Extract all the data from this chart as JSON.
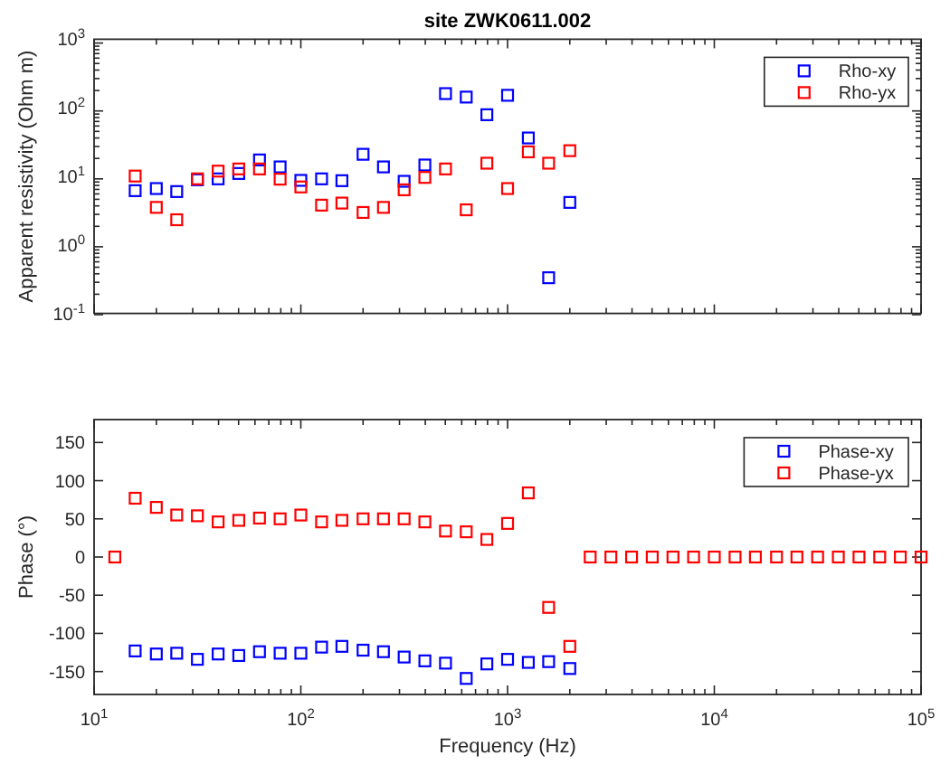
{
  "chart_data": [
    {
      "type": "scatter",
      "title": "site ZWK0611.002",
      "ylabel": "Apparent resistivity (Ohm m)",
      "log": "xy",
      "xlim": [
        10,
        100000
      ],
      "ylim": [
        0.1,
        1000
      ],
      "xticks": [
        {
          "value": 10,
          "label": null
        },
        {
          "value": 100,
          "label": null
        },
        {
          "value": 1000,
          "label": null
        },
        {
          "value": 10000,
          "label": null
        },
        {
          "value": 100000,
          "label": null
        }
      ],
      "yticks": [
        {
          "value": 0.1,
          "label": "10$^{-1}$"
        },
        {
          "value": 1,
          "label": "10$^{0}$"
        },
        {
          "value": 10,
          "label": "10$^{1}$"
        },
        {
          "value": 100,
          "label": "10$^{2}$"
        },
        {
          "value": 1000,
          "label": "10$^{3}$"
        }
      ],
      "tick_labels": "y",
      "marker": "square",
      "legend": "top right",
      "series": [
        {
          "name": "Rho-xy",
          "color": "#0000ff",
          "x": [
            15.8,
            20,
            25.1,
            31.6,
            39.8,
            50.1,
            63.1,
            79.4,
            100,
            126,
            158,
            200,
            251,
            316,
            398,
            501,
            631,
            794,
            1000,
            1260,
            1580,
            2000
          ],
          "values": [
            6.7,
            7.2,
            6.5,
            9.7,
            10,
            12,
            19,
            15,
            9.5,
            10,
            9.4,
            23,
            15,
            9.2,
            16,
            180,
            160,
            88,
            170,
            40,
            0.35,
            4.5
          ]
        },
        {
          "name": "Rho-yx",
          "color": "#ff0000",
          "x": [
            15.8,
            20,
            25.1,
            31.6,
            39.8,
            50.1,
            63.1,
            79.4,
            100,
            126,
            158,
            200,
            251,
            316,
            398,
            501,
            631,
            794,
            1000,
            1260,
            1580,
            2000
          ],
          "values": [
            11,
            3.8,
            2.5,
            10,
            13,
            14,
            14,
            9.9,
            7.6,
            4.1,
            4.4,
            3.2,
            3.8,
            6.9,
            10.5,
            14,
            3.5,
            17,
            7.2,
            25,
            17,
            26
          ]
        }
      ]
    },
    {
      "type": "scatter",
      "xlabel": "Frequency (Hz)",
      "ylabel": "Phase (°)",
      "log": "x",
      "xlim": [
        10,
        100000
      ],
      "ylim": [
        -180,
        180
      ],
      "xticks": [
        {
          "value": 10,
          "label": "10$^{1}$"
        },
        {
          "value": 100,
          "label": "10$^{2}$"
        },
        {
          "value": 1000,
          "label": "10$^{3}$"
        },
        {
          "value": 10000,
          "label": "10$^{4}$"
        },
        {
          "value": 100000,
          "label": "10$^{5}$"
        }
      ],
      "yticks": [
        -150,
        -100,
        -50,
        0,
        50,
        100,
        150
      ],
      "marker": "square",
      "legend": "top right",
      "series": [
        {
          "name": "Phase-xy",
          "color": "#0000ff",
          "x": [
            15.8,
            20,
            25.1,
            31.6,
            39.8,
            50.1,
            63.1,
            79.4,
            100,
            126,
            158,
            200,
            251,
            316,
            398,
            501,
            631,
            794,
            1000,
            1260,
            1580,
            2000
          ],
          "values": [
            -123,
            -127,
            -126,
            -134,
            -127,
            -129,
            -124,
            -126,
            -126,
            -118,
            -117,
            -122,
            -124,
            -131,
            -136,
            -139,
            -159,
            -140,
            -134,
            -138,
            -137,
            -146
          ]
        },
        {
          "name": "Phase-yx",
          "color": "#ff0000",
          "x": [
            12.6,
            15.8,
            20,
            25.1,
            31.6,
            39.8,
            50.1,
            63.1,
            79.4,
            100,
            126,
            158,
            200,
            251,
            316,
            398,
            501,
            631,
            794,
            1000,
            1260,
            1580,
            2000,
            2510,
            3160,
            3980,
            5010,
            6310,
            7940,
            10000,
            12600,
            15800,
            20000,
            25100,
            31600,
            39800,
            50100,
            63100,
            79400,
            100000
          ],
          "values": [
            0,
            77,
            65,
            55,
            54,
            46,
            48,
            51,
            50,
            55,
            46,
            48,
            50,
            50,
            50,
            46,
            34,
            33,
            23,
            44,
            84,
            -66,
            -117,
            0,
            0,
            0,
            0,
            0,
            0,
            0,
            0,
            0,
            0,
            0,
            0,
            0,
            0,
            0,
            0,
            0
          ]
        }
      ]
    }
  ]
}
